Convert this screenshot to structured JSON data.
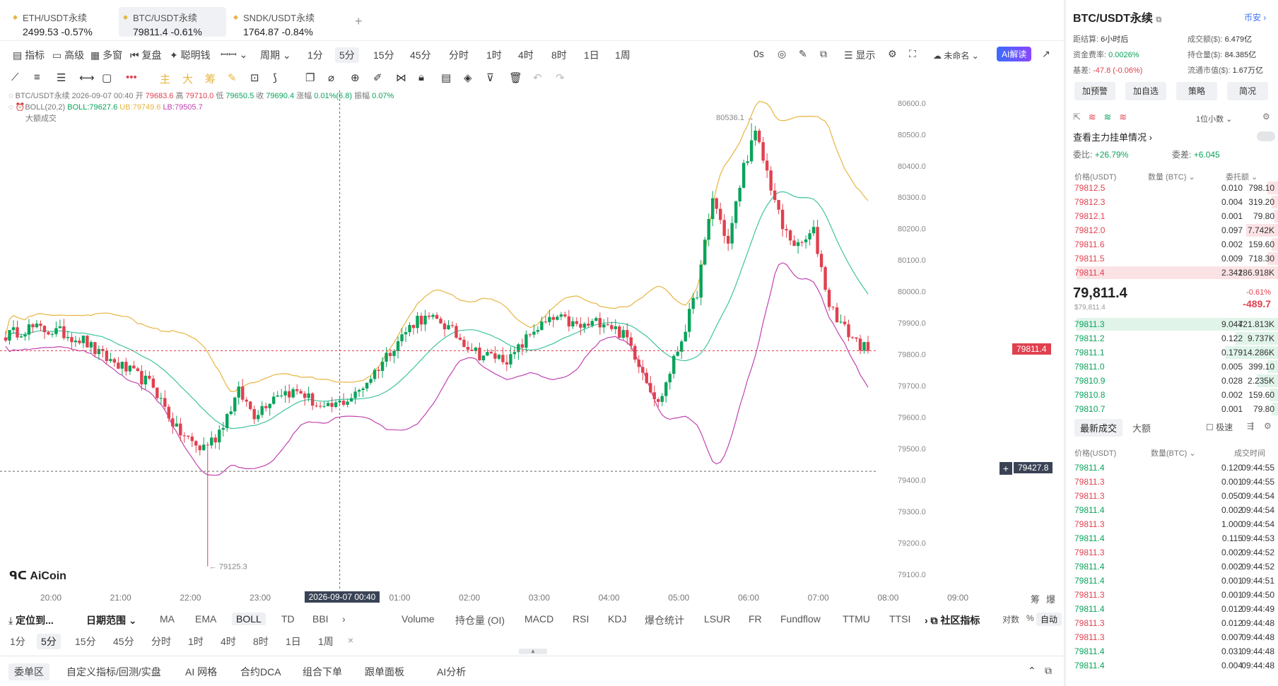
{
  "tabs": [
    {
      "name": "ETH/USDT永续",
      "price": "2499.53",
      "change": "-0.57%"
    },
    {
      "name": "BTC/USDT永续",
      "price": "79811.4",
      "change": "-0.61%"
    },
    {
      "name": "SNDK/USDT永续",
      "price": "1764.87",
      "change": "-0.84%"
    }
  ],
  "toolbar": {
    "indicators": "指标",
    "advanced": "高级",
    "multi_window": "多窗",
    "replay": "复盘",
    "smart_money": "聪明钱",
    "period_label": "周期",
    "periods": [
      "1分",
      "5分",
      "15分",
      "45分",
      "分时",
      "1时",
      "4时",
      "8时",
      "1日",
      "1周"
    ],
    "selected_period": "5分",
    "zero_s": "0s",
    "display": "显示",
    "unnamed": "未命名",
    "ai": "AI解读"
  },
  "legend": {
    "line1": "BTC/USDT永续 2026-09-07 00:40 开",
    "open": "79683.6",
    "high_label": "高",
    "high": "79710.0",
    "low_label": "低",
    "low": "79650.5",
    "close_label": "收",
    "close": "79690.4",
    "chg_label": "涨幅",
    "chg": "0.01%(6.8)",
    "amp_label": "振幅",
    "amp": "0.07%",
    "boll_name": "BOLL(20,2)",
    "boll": "BOLL:79627.6",
    "ub": "UB:79749.6",
    "lb": "LB:79505.7",
    "big": "大额成交"
  },
  "chart_data": {
    "type": "candlestick",
    "title": "BTC/USDT永续",
    "y_ticks": [
      80600,
      80500,
      80400,
      80300,
      80200,
      80100,
      80000,
      79900,
      79800,
      79700,
      79600,
      79500,
      79400,
      79300,
      79200,
      79100
    ],
    "ylim": [
      79055,
      80640
    ],
    "x_ticks": [
      "20:00",
      "21:00",
      "22:00",
      "23:00",
      "9月7",
      "01:00",
      "02:00",
      "03:00",
      "04:00",
      "05:00",
      "06:00",
      "07:00",
      "08:00",
      "09:00"
    ],
    "crosshair_time": "2026-09-07 00:40",
    "current_price": "79811.4",
    "crosshair_price": "79427.8",
    "max_label": "80536.1",
    "min_label": "79125.3",
    "anchors": [
      [
        0,
        79860
      ],
      [
        6,
        79885
      ],
      [
        14,
        79870
      ],
      [
        20,
        79845
      ],
      [
        24,
        79800
      ],
      [
        30,
        79760
      ],
      [
        38,
        79700
      ],
      [
        44,
        79560
      ],
      [
        50,
        79500
      ],
      [
        54,
        79535
      ],
      [
        60,
        79680
      ],
      [
        64,
        79610
      ],
      [
        70,
        79680
      ],
      [
        76,
        79680
      ],
      [
        82,
        79620
      ],
      [
        90,
        79670
      ],
      [
        95,
        79745
      ],
      [
        100,
        79830
      ],
      [
        106,
        79915
      ],
      [
        112,
        79905
      ],
      [
        116,
        79860
      ],
      [
        122,
        79800
      ],
      [
        130,
        79785
      ],
      [
        136,
        79880
      ],
      [
        142,
        79915
      ],
      [
        148,
        79885
      ],
      [
        154,
        79910
      ],
      [
        160,
        79850
      ],
      [
        164,
        79750
      ],
      [
        168,
        79640
      ],
      [
        174,
        79850
      ],
      [
        178,
        80000
      ],
      [
        182,
        80300
      ],
      [
        186,
        80150
      ],
      [
        190,
        80400
      ],
      [
        193,
        80500
      ],
      [
        196,
        80380
      ],
      [
        200,
        80200
      ],
      [
        204,
        80140
      ],
      [
        208,
        80190
      ],
      [
        212,
        79960
      ],
      [
        216,
        79880
      ],
      [
        220,
        79830
      ],
      [
        222,
        79811
      ]
    ]
  },
  "indicator_bar": {
    "locate": "定位到...",
    "date_range": "日期范围",
    "main": [
      "MA",
      "EMA",
      "BOLL",
      "TD",
      "BBI"
    ],
    "selected": "BOLL",
    "sub": [
      "Volume",
      "持仓量 (OI)",
      "MACD",
      "RSI",
      "KDJ",
      "爆仓统计",
      "LSUR",
      "FR",
      "Fundflow",
      "TTMU",
      "TTSI"
    ],
    "community": "社区指标",
    "log": "对数",
    "pct": "%",
    "auto": "自动"
  },
  "period_bar": [
    "1分",
    "5分",
    "15分",
    "45分",
    "分时",
    "1时",
    "4时",
    "8时",
    "1日",
    "1周"
  ],
  "period_bar_selected": "5分",
  "bottom_bar": [
    "委单区",
    "自定义指标/回测/实盘",
    "AI 网格",
    "合约DCA",
    "组合下单",
    "跟单面板",
    "AI分析"
  ],
  "brand": "AiCoin",
  "right": {
    "title": "BTC/USDT永续",
    "exchange": "币安",
    "stats": {
      "settle_label": "距结算:",
      "settle": "6小时后",
      "turnover_label": "成交额($):",
      "turnover": "6.479亿",
      "funding_label": "资金费率:",
      "funding": "0.0026%",
      "oi_label": "持仓量($):",
      "oi": "84.385亿",
      "basis_label": "基差:",
      "basis": "-47.8 (-0.06%)",
      "mcap_label": "流通市值($):",
      "mcap": "1.67万亿"
    },
    "buttons": [
      "加预警",
      "加自选",
      "策略",
      "简况"
    ],
    "precision": "1位小数",
    "main_orders": "查看主力挂单情况",
    "ratio_label": "委比:",
    "ratio": "+26.79%",
    "diff_label": "委差:",
    "diff": "+6.045",
    "ob_headers": [
      "价格(USDT)",
      "数量 (BTC)",
      "委托额"
    ],
    "asks": [
      {
        "p": "79812.5",
        "q": "0.010",
        "t": "798.10",
        "w": 0.05
      },
      {
        "p": "79812.3",
        "q": "0.004",
        "t": "319.20",
        "w": 0.03
      },
      {
        "p": "79812.1",
        "q": "0.001",
        "t": "79.80",
        "w": 0.02
      },
      {
        "p": "79812.0",
        "q": "0.097",
        "t": "7.742K",
        "w": 0.15
      },
      {
        "p": "79811.6",
        "q": "0.002",
        "t": "159.60",
        "w": 0.03
      },
      {
        "p": "79811.5",
        "q": "0.009",
        "t": "718.30",
        "w": 0.05
      },
      {
        "p": "79811.4",
        "q": "2.342",
        "t": "186.918K",
        "w": 0.95
      }
    ],
    "last_price": "79,811.4",
    "last_sub": "$79,811.4",
    "last_pct": "-0.61%",
    "last_chg": "-489.7",
    "bids": [
      {
        "p": "79811.3",
        "q": "9.044",
        "t": "721.813K",
        "w": 0.95
      },
      {
        "p": "79811.2",
        "q": "0.122",
        "t": "9.737K",
        "w": 0.2
      },
      {
        "p": "79811.1",
        "q": "0.179",
        "t": "14.286K",
        "w": 0.25
      },
      {
        "p": "79811.0",
        "q": "0.005",
        "t": "399.10",
        "w": 0.05
      },
      {
        "p": "79810.9",
        "q": "0.028",
        "t": "2.235K",
        "w": 0.1
      },
      {
        "p": "79810.8",
        "q": "0.002",
        "t": "159.60",
        "w": 0.04
      },
      {
        "p": "79810.7",
        "q": "0.001",
        "t": "79.80",
        "w": 0.03
      }
    ],
    "trades_tabs": [
      "最新成交",
      "大额"
    ],
    "fast": "极速",
    "trade_headers": [
      "价格(USDT)",
      "数量(BTC)",
      "成交时间"
    ],
    "trades": [
      {
        "p": "79811.4",
        "q": "0.120",
        "t": "09:44:55",
        "c": "g"
      },
      {
        "p": "79811.3",
        "q": "0.001",
        "t": "09:44:55",
        "c": "r"
      },
      {
        "p": "79811.3",
        "q": "0.050",
        "t": "09:44:54",
        "c": "r"
      },
      {
        "p": "79811.4",
        "q": "0.002",
        "t": "09:44:54",
        "c": "g"
      },
      {
        "p": "79811.3",
        "q": "1.000",
        "t": "09:44:54",
        "c": "r"
      },
      {
        "p": "79811.4",
        "q": "0.115",
        "t": "09:44:53",
        "c": "g"
      },
      {
        "p": "79811.3",
        "q": "0.002",
        "t": "09:44:52",
        "c": "r"
      },
      {
        "p": "79811.4",
        "q": "0.002",
        "t": "09:44:52",
        "c": "g"
      },
      {
        "p": "79811.4",
        "q": "0.001",
        "t": "09:44:51",
        "c": "g"
      },
      {
        "p": "79811.3",
        "q": "0.001",
        "t": "09:44:50",
        "c": "r"
      },
      {
        "p": "79811.4",
        "q": "0.012",
        "t": "09:44:49",
        "c": "g"
      },
      {
        "p": "79811.3",
        "q": "0.012",
        "t": "09:44:48",
        "c": "r"
      },
      {
        "p": "79811.3",
        "q": "0.007",
        "t": "09:44:48",
        "c": "r"
      },
      {
        "p": "79811.4",
        "q": "0.031",
        "t": "09:44:48",
        "c": "g"
      },
      {
        "p": "79811.4",
        "q": "0.004",
        "t": "09:44:48",
        "c": "g"
      }
    ]
  }
}
